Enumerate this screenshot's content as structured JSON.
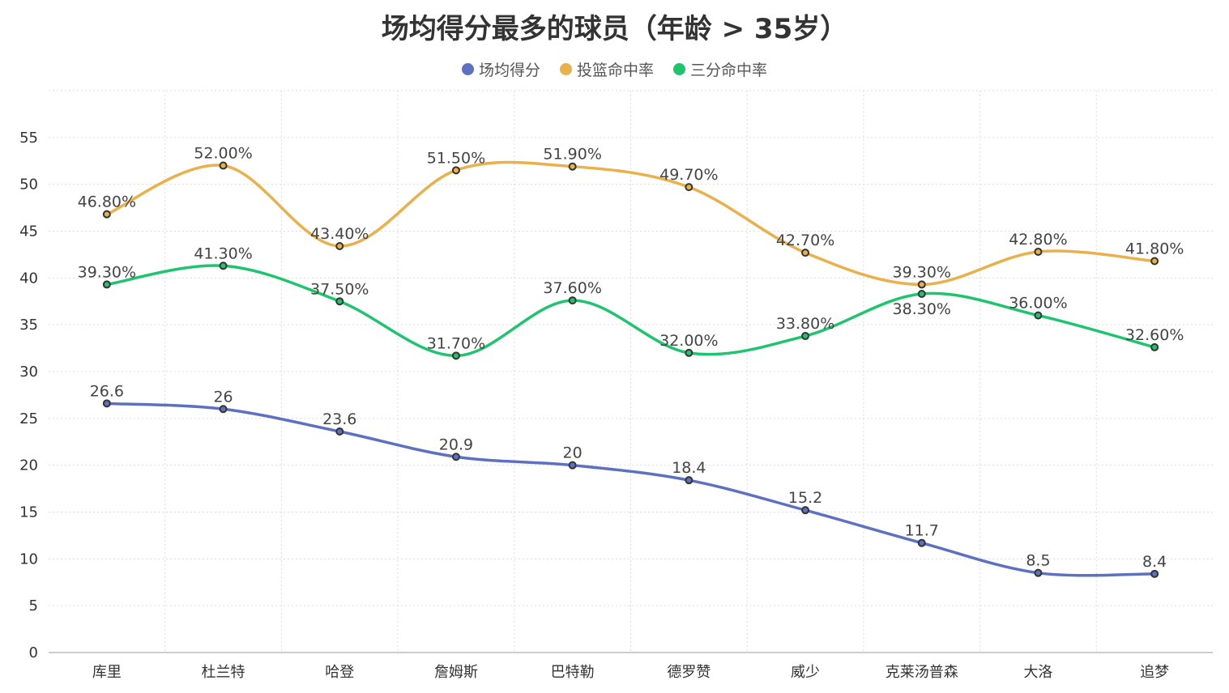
{
  "chart_data": {
    "type": "line",
    "title": "场均得分最多的球员（年龄 > 35岁）",
    "categories": [
      "库里",
      "杜兰特",
      "哈登",
      "詹姆斯",
      "巴特勒",
      "德罗赞",
      "威少",
      "克莱汤普森",
      "大洛",
      "追梦"
    ],
    "ylim": [
      0,
      60
    ],
    "yticks": [
      0,
      5,
      10,
      15,
      20,
      25,
      30,
      35,
      40,
      45,
      50,
      55
    ],
    "grid": true,
    "legend_placement": "top",
    "smooth": true,
    "series": [
      {
        "name": "场均得分",
        "color": "#5e70c0",
        "values": [
          26.6,
          26,
          23.6,
          20.9,
          20,
          18.4,
          15.2,
          11.7,
          8.5,
          8.4
        ],
        "labels": [
          "26.6",
          "26",
          "23.6",
          "20.9",
          "20",
          "18.4",
          "15.2",
          "11.7",
          "8.5",
          "8.4"
        ]
      },
      {
        "name": "投篮命中率",
        "color": "#eab04a",
        "values": [
          46.8,
          52.0,
          43.4,
          51.5,
          51.9,
          49.7,
          42.7,
          39.3,
          42.8,
          41.8
        ],
        "labels": [
          "46.80%",
          "52.00%",
          "43.40%",
          "51.50%",
          "51.90%",
          "49.70%",
          "42.70%",
          "39.30%",
          "42.80%",
          "41.80%"
        ]
      },
      {
        "name": "三分命中率",
        "color": "#1fc46f",
        "values": [
          39.3,
          41.3,
          37.5,
          31.7,
          37.6,
          32.0,
          33.8,
          38.3,
          36.0,
          32.6
        ],
        "labels": [
          "39.30%",
          "41.30%",
          "37.50%",
          "31.70%",
          "37.60%",
          "32.00%",
          "33.80%",
          "38.30%",
          "36.00%",
          "32.60%"
        ]
      }
    ]
  }
}
